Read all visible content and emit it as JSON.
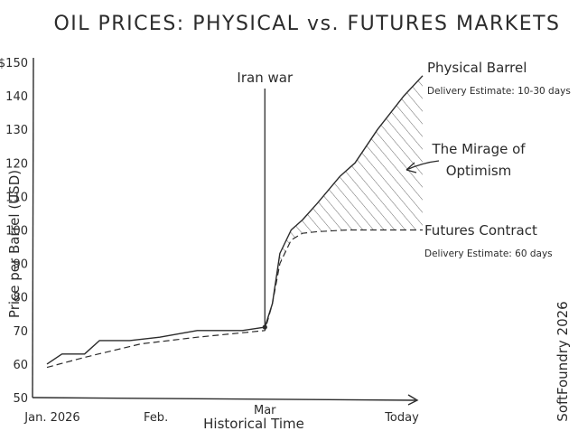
{
  "chart_data": {
    "type": "line",
    "title": "OIL PRICES: PHYSICAL vs. FUTURES MARKETS",
    "ylabel": "Price per Barrel (USD)",
    "xlabel": "Historical Time",
    "x_ticks": [
      "Jan. 2026",
      "Feb.",
      "Mar",
      "Today"
    ],
    "y_ticks": [
      "$150",
      "140",
      "130",
      "120",
      "110",
      "100",
      "90",
      "80",
      "70",
      "60",
      "50"
    ],
    "ylim": [
      50,
      150
    ],
    "xlim": [
      0,
      1
    ],
    "grid": false,
    "series": [
      {
        "name": "Physical Barrel",
        "style": "solid",
        "note": "Delivery Estimate: 10-30 days",
        "x": [
          0.0,
          0.04,
          0.1,
          0.14,
          0.22,
          0.3,
          0.4,
          0.52,
          0.58,
          0.6,
          0.62,
          0.65,
          0.68,
          0.72,
          0.78,
          0.82,
          0.88,
          0.95,
          1.0
        ],
        "y": [
          60,
          63,
          63,
          67,
          67,
          68,
          70,
          70,
          71,
          78,
          93,
          100,
          103,
          108,
          116,
          120,
          130,
          140,
          146
        ]
      },
      {
        "name": "Futures Contract",
        "style": "dashed",
        "note": "Delivery Estimate: 60 days",
        "x": [
          0.0,
          0.1,
          0.25,
          0.4,
          0.58,
          0.6,
          0.62,
          0.65,
          0.68,
          0.72,
          0.8,
          0.9,
          1.0
        ],
        "y": [
          59,
          62,
          66,
          68,
          70,
          78,
          90,
          97,
          99,
          99.5,
          100,
          100,
          100
        ]
      }
    ],
    "annotations": [
      {
        "text": "Iran war",
        "x": 0.58
      },
      {
        "text": "The Mirage of Optimism"
      }
    ],
    "shaded_region": "hatched area between Physical Barrel and Futures Contract after Iran war",
    "signature": "SoftFoundry 2026"
  }
}
